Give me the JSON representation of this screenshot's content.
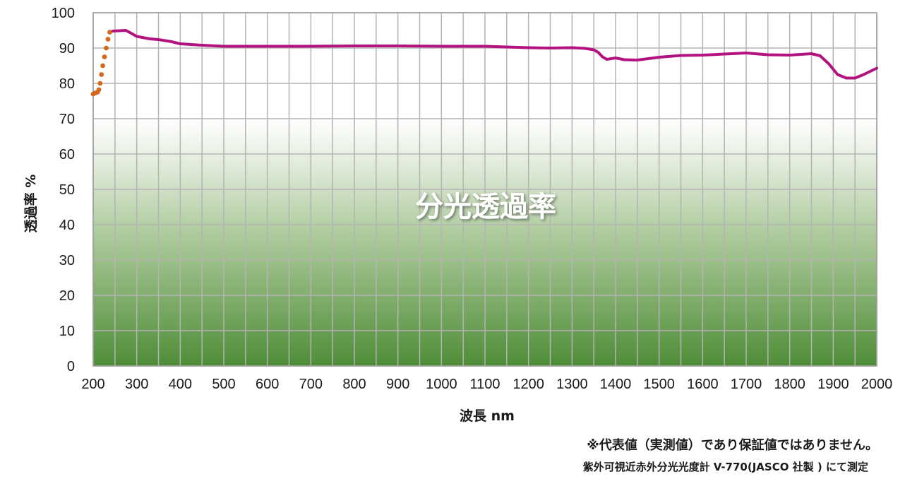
{
  "chart_data": {
    "type": "line",
    "title": "分光透過率",
    "xlabel": "波長 nm",
    "ylabel": "透過率 %",
    "xlim": [
      200,
      2000
    ],
    "ylim": [
      0,
      100
    ],
    "x_ticks": [
      200,
      300,
      400,
      500,
      600,
      700,
      800,
      900,
      1000,
      1100,
      1200,
      1300,
      1400,
      1500,
      1600,
      1700,
      1800,
      1900,
      2000
    ],
    "y_ticks": [
      0,
      10,
      20,
      30,
      40,
      50,
      60,
      70,
      80,
      90,
      100
    ],
    "grid": true,
    "background": "gradient from white (top, ~80%) to green (bottom)",
    "series": [
      {
        "style": "dotted",
        "color": "#D2691E",
        "x": [
          200,
          205,
          210,
          213,
          216,
          219,
          222,
          226,
          230,
          234,
          238
        ],
        "y": [
          77.0,
          77.3,
          77.5,
          78.2,
          80.0,
          82.5,
          85.0,
          87.5,
          90.0,
          92.5,
          94.5
        ]
      },
      {
        "style": "solid",
        "color": "#B3137E",
        "x": [
          245,
          260,
          275,
          290,
          300,
          330,
          350,
          380,
          400,
          450,
          500,
          600,
          700,
          800,
          900,
          1000,
          1100,
          1200,
          1250,
          1300,
          1330,
          1350,
          1360,
          1370,
          1380,
          1400,
          1420,
          1450,
          1500,
          1550,
          1600,
          1650,
          1700,
          1750,
          1800,
          1850,
          1870,
          1890,
          1910,
          1930,
          1950,
          1970,
          2000
        ],
        "y": [
          94.8,
          94.9,
          95.0,
          94.0,
          93.3,
          92.6,
          92.4,
          91.8,
          91.2,
          90.8,
          90.5,
          90.5,
          90.5,
          90.6,
          90.6,
          90.5,
          90.5,
          90.1,
          90.0,
          90.1,
          89.9,
          89.5,
          88.8,
          87.5,
          86.8,
          87.2,
          86.7,
          86.6,
          87.4,
          87.9,
          88.0,
          88.3,
          88.6,
          88.1,
          88.0,
          88.4,
          87.8,
          85.5,
          82.5,
          81.5,
          81.5,
          82.5,
          84.3
        ]
      }
    ]
  },
  "notes": {
    "line1": "※代表値（実測値）であり保証値ではありません。",
    "line2": "紫外可視近赤外分光光度計 V-770(JASCO 社製 ) にて測定"
  }
}
